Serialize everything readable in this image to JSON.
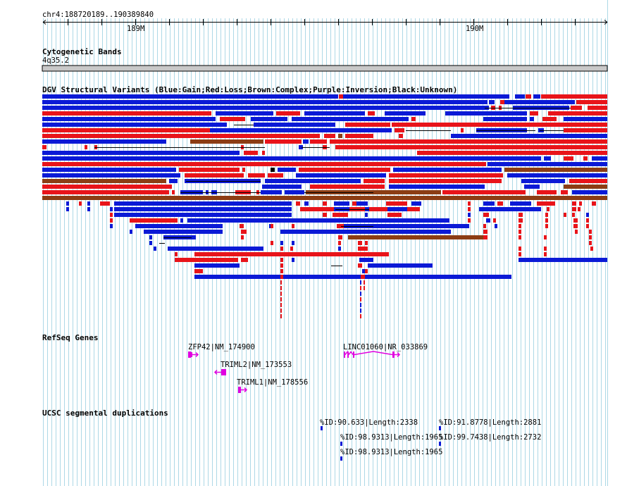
{
  "ruler": {
    "locus": "chr4:188720189..190389840",
    "ticks": [
      "189M",
      "190M"
    ]
  },
  "tracks": {
    "cyto": {
      "title": "Cytogenetic Bands",
      "band": "4q35.2"
    },
    "dgv": {
      "title": "DGV Structural Variants (Blue:Gain;Red:Loss;Brown:Complex;Purple:Inversion;Black:Unknown)"
    },
    "refseq": {
      "title": "RefSeq Genes"
    },
    "segdup": {
      "title": "UCSC segmental duplications"
    }
  },
  "colors": {
    "gain": "#0b1ad6",
    "loss": "#e8141a",
    "complex": "#8c3d14",
    "unknown": "#000000",
    "gene": "#e000e0",
    "grid": "#add8e6",
    "band": "#c8c8c8"
  },
  "genes": [
    {
      "label": "ZFP42|NM_174900",
      "strand": "+"
    },
    {
      "label": "TRIML2|NM_173553",
      "strand": "-"
    },
    {
      "label": "TRIML1|NM_178556",
      "strand": "+"
    },
    {
      "label": "LINC01060|NR_033869",
      "strand": "+"
    }
  ],
  "segdups": [
    {
      "label": "%ID:90.633|Length:2338"
    },
    {
      "label": "%ID:91.8778|Length:2881"
    },
    {
      "label": "%ID:98.9313|Length:1965"
    },
    {
      "label": "%ID:99.7438|Length:2732"
    },
    {
      "label": "%ID:98.9313|Length:1965"
    }
  ]
}
